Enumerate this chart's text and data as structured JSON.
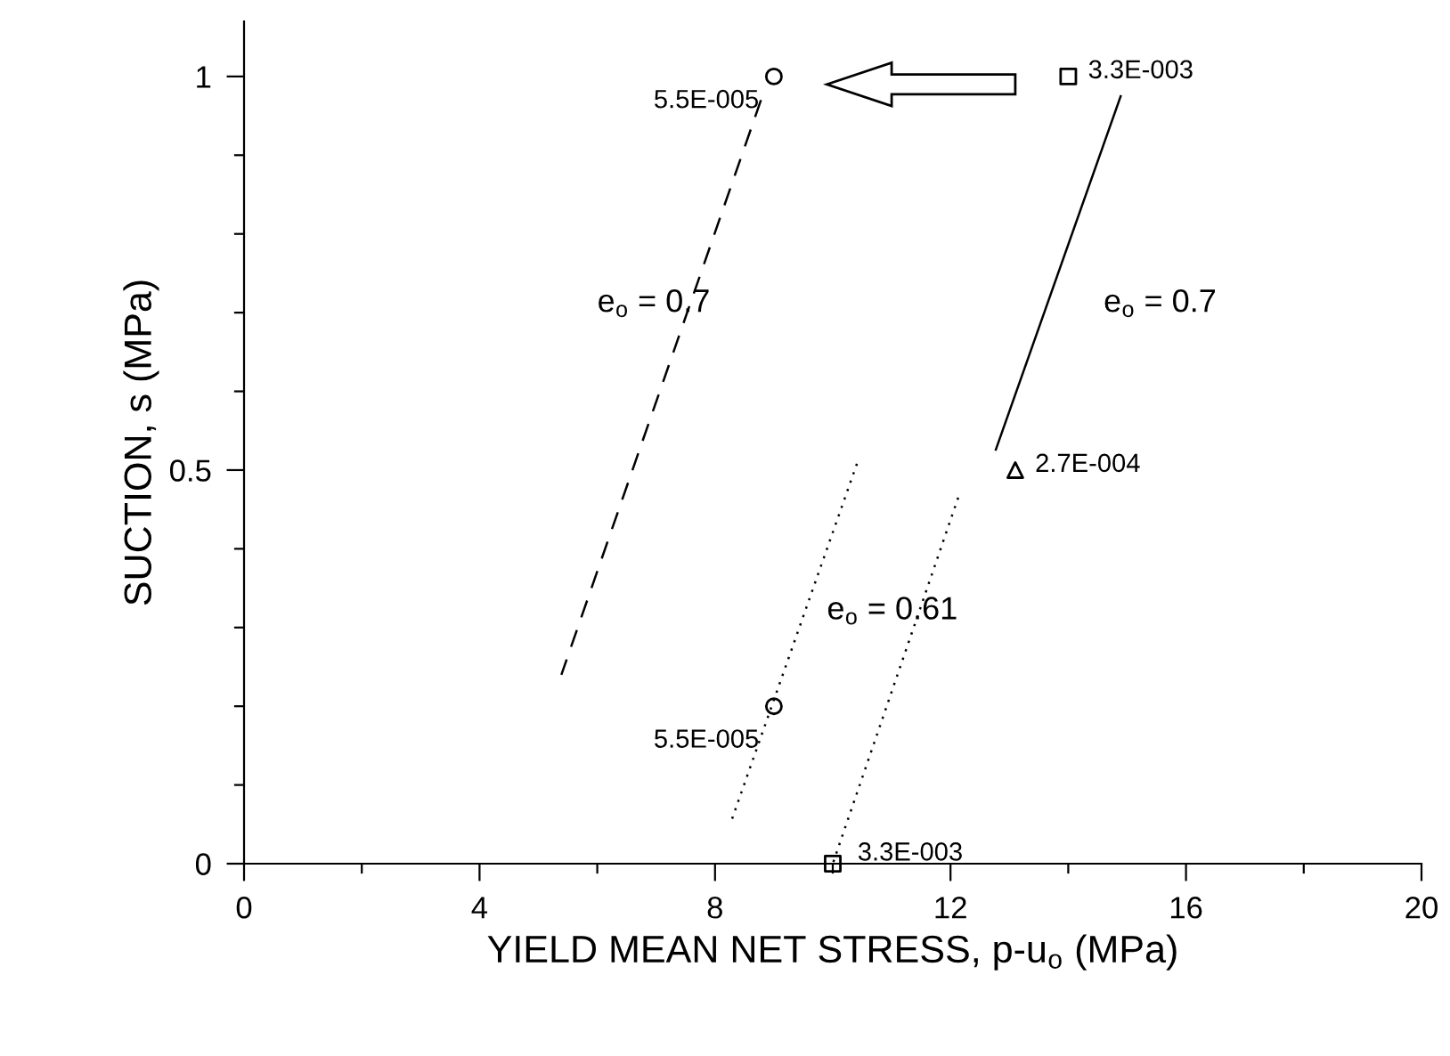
{
  "chart_data": {
    "type": "scatter",
    "xlabel": "YIELD MEAN NET STRESS, p-u$_{o}$ (MPa)",
    "ylabel": "SUCTION, s (MPa)",
    "xlim": [
      0,
      20
    ],
    "ylim": [
      0,
      1.07
    ],
    "xticks": [
      0,
      {
        "value": 2,
        "label": null
      },
      4,
      {
        "value": 6,
        "label": null
      },
      8,
      {
        "value": 10,
        "label": null
      },
      12,
      {
        "value": 14,
        "label": null
      },
      16,
      {
        "value": 18,
        "label": null
      },
      20
    ],
    "yticks": [
      0,
      {
        "value": 0.1,
        "label": null
      },
      {
        "value": 0.2,
        "label": null
      },
      {
        "value": 0.3,
        "label": null
      },
      {
        "value": 0.4,
        "label": null
      },
      0.5,
      {
        "value": 0.6,
        "label": null
      },
      {
        "value": 0.7,
        "label": null
      },
      {
        "value": 0.8,
        "label": null
      },
      {
        "value": 0.9,
        "label": null
      },
      1
    ],
    "grid": false,
    "series": [
      {
        "type": "line",
        "x": [
          8.78,
          5.39
        ],
        "values": [
          0.97,
          0.24
        ],
        "color": "#000000",
        "line_style": "dashed",
        "marker": "none"
      },
      {
        "type": "line",
        "x": [
          14.89,
          12.77
        ],
        "values": [
          0.975,
          0.526
        ],
        "color": "#000000",
        "line_style": "solid",
        "marker": "none"
      },
      {
        "type": "line",
        "x": [
          10.41,
          8.29
        ],
        "values": [
          0.508,
          0.057
        ],
        "color": "#000000",
        "line_style": "dotted",
        "marker": "none"
      },
      {
        "type": "line",
        "x": [
          12.13,
          10.0
        ],
        "values": [
          0.465,
          0.0
        ],
        "color": "#000000",
        "line_style": "dotted",
        "marker": "none"
      },
      {
        "x": [
          9.0,
          9.0
        ],
        "values": [
          1.0,
          0.2
        ],
        "color": "#000000",
        "marker": "circle"
      },
      {
        "x": [
          14.0,
          10.0
        ],
        "values": [
          1.0,
          0.0
        ],
        "color": "#000000",
        "marker": "square"
      },
      {
        "x": [
          13.1
        ],
        "values": [
          0.5
        ],
        "color": "#000000",
        "marker": "triangle"
      }
    ],
    "annotations": [
      {
        "text": "5.5E-005",
        "x": 9.0,
        "y": 1.0
      },
      {
        "text": "3.3E-003",
        "x": 14.0,
        "y": 1.0
      },
      {
        "text": "2.7E-004",
        "x": 13.1,
        "y": 0.5
      },
      {
        "text": "5.5E-005",
        "x": 9.0,
        "y": 0.2
      },
      {
        "text": "3.3E-003",
        "x": 10.0,
        "y": 0.0
      },
      "e$_{o}$ = 0.7",
      "e$_{o}$ = 0.7",
      "e$_{o}$ = 0.61"
    ]
  }
}
